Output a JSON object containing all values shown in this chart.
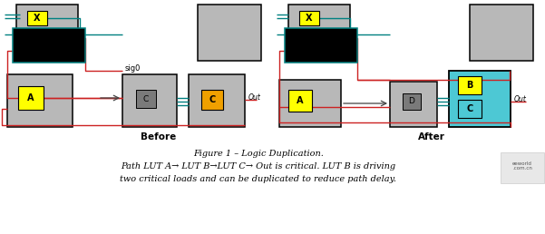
{
  "fig_width": 6.01,
  "fig_height": 2.58,
  "dpi": 100,
  "bg_color": "#ffffff",
  "title_line1": "Figure 1 – Logic Duplication.",
  "title_line2": "Path LUT A→ LUT B→LUT C→ Out is critical. LUT B is driving",
  "title_line3": "two critical loads and can be duplicated to reduce path delay.",
  "before_label": "Before",
  "after_label": "After",
  "sig0_label": "sig0",
  "out_label": "Out",
  "gray": "#b8b8b8",
  "dark_gray": "#7a7a7a",
  "yellow": "#ffff00",
  "cyan_box": "#4dc8d4",
  "orange": "#f0a000",
  "red": "#cc2222",
  "teal": "#008080",
  "black": "#000000",
  "white": "#ffffff"
}
